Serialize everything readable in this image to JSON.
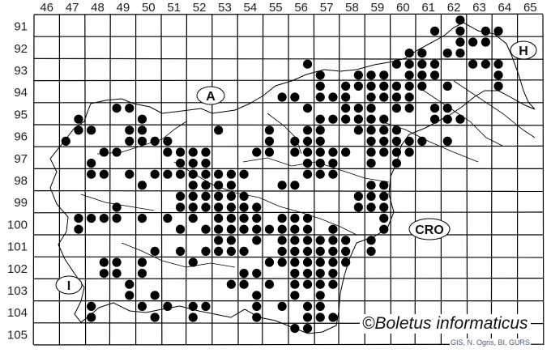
{
  "map": {
    "grid_columns": [
      46,
      47,
      48,
      49,
      50,
      51,
      52,
      53,
      54,
      55,
      56,
      57,
      58,
      59,
      60,
      61,
      62,
      63,
      64,
      65
    ],
    "grid_rows": [
      91,
      92,
      93,
      94,
      95,
      96,
      97,
      98,
      99,
      100,
      101,
      102,
      103,
      104,
      105
    ],
    "country_labels": {
      "austria": "A",
      "hungary": "H",
      "italy": "I",
      "croatia": "CRO"
    },
    "copyright": "©Boletus informaticus",
    "source": "GIS, N. Ogris, BI, GURS",
    "dot_color": "#000000",
    "grid_color": "#000000"
  },
  "occurrences": [
    {
      "y": 91.25,
      "x": [
        62.75
      ]
    },
    {
      "y": 91.75,
      "x": [
        61.75,
        62.75,
        63.75,
        64.25
      ]
    },
    {
      "y": 92.25,
      "x": [
        62.75,
        63.25,
        63.75
      ]
    },
    {
      "y": 92.75,
      "x": [
        60.75,
        61.25,
        62.25,
        62.75
      ]
    },
    {
      "y": 93.25,
      "x": [
        56.75,
        60.25,
        60.75,
        61.25,
        61.75,
        63.25,
        63.75,
        64.25
      ]
    },
    {
      "y": 93.75,
      "x": [
        57.25,
        58.75,
        59.25,
        59.75,
        60.75,
        61.25,
        61.75,
        64.25
      ]
    },
    {
      "y": 94.25,
      "x": [
        57.25,
        58.25,
        58.75,
        59.25,
        59.75,
        60.25,
        60.75,
        61.25,
        62.25,
        64.25
      ]
    },
    {
      "y": 94.75,
      "x": [
        55.75,
        56.25,
        57.25,
        57.75,
        58.25,
        59.25,
        59.75,
        60.25,
        60.75
      ]
    },
    {
      "y": 95.25,
      "x": [
        49.25,
        49.75,
        56.75,
        58.25,
        58.75,
        59.25,
        60.25,
        60.75,
        61.75,
        62.25
      ]
    },
    {
      "y": 95.75,
      "x": [
        47.75,
        50.25,
        57.25,
        57.75,
        58.25,
        58.75,
        59.25,
        59.75,
        61.75,
        62.25,
        62.75
      ]
    },
    {
      "y": 96.25,
      "x": [
        47.75,
        48.25,
        49.75,
        50.25,
        53.25,
        55.25,
        56.75,
        57.25,
        58.75,
        59.25,
        59.75,
        60.25
      ]
    },
    {
      "y": 96.75,
      "x": [
        47.25,
        49.75,
        50.25,
        50.75,
        51.25,
        55.25,
        56.25,
        56.75,
        57.25,
        59.25,
        59.75,
        60.25,
        60.75,
        61.25,
        62.25
      ]
    },
    {
      "y": 97.25,
      "x": [
        48.75,
        49.25,
        51.25,
        51.75,
        52.25,
        52.75,
        54.75,
        55.25,
        56.25,
        56.75,
        57.25,
        57.75,
        58.25,
        59.25,
        59.75,
        60.25,
        60.75
      ]
    },
    {
      "y": 97.75,
      "x": [
        48.25,
        51.75,
        52.25,
        52.75,
        56.75,
        57.25,
        57.75,
        59.25,
        60.25
      ]
    },
    {
      "y": 98.25,
      "x": [
        48.25,
        48.75,
        49.75,
        50.75,
        51.25,
        51.75,
        52.25,
        52.75,
        53.25,
        53.75,
        54.25,
        56.75,
        57.25,
        57.75
      ]
    },
    {
      "y": 98.75,
      "x": [
        50.25,
        52.25,
        52.75,
        53.25,
        53.75,
        55.75,
        56.25,
        59.25,
        59.75
      ]
    },
    {
      "y": 99.25,
      "x": [
        51.75,
        52.25,
        52.75,
        53.25,
        53.75,
        54.25,
        58.75,
        59.25,
        59.75
      ]
    },
    {
      "y": 99.75,
      "x": [
        49.25,
        51.75,
        52.25,
        52.75,
        53.25,
        53.75,
        54.25,
        54.75,
        58.75,
        59.25,
        59.75
      ]
    },
    {
      "y": 100.25,
      "x": [
        47.75,
        48.25,
        48.75,
        49.25,
        50.25,
        51.25,
        52.25,
        53.25,
        53.75,
        54.25,
        54.75,
        55.75,
        56.25,
        56.75,
        59.75
      ]
    },
    {
      "y": 100.75,
      "x": [
        47.75,
        51.75,
        52.75,
        53.25,
        53.75,
        54.25,
        54.75,
        55.25,
        55.75,
        56.25,
        56.75,
        57.75,
        59.75
      ]
    },
    {
      "y": 101.25,
      "x": [
        53.25,
        53.75,
        54.75,
        55.75,
        56.25,
        56.75,
        57.25,
        57.75,
        58.25,
        59.25
      ]
    },
    {
      "y": 101.75,
      "x": [
        50.75,
        51.75,
        52.75,
        53.25,
        53.75,
        54.25,
        55.75,
        56.25,
        56.75,
        57.25,
        57.75,
        58.25,
        59.25
      ]
    },
    {
      "y": 102.25,
      "x": [
        48.75,
        49.25,
        50.25,
        52.25,
        55.25,
        55.75,
        56.25,
        56.75,
        57.25,
        57.75,
        58.25
      ]
    },
    {
      "y": 102.75,
      "x": [
        48.75,
        49.25,
        50.25,
        54.25,
        54.75,
        56.25,
        56.75,
        57.25,
        57.75
      ]
    },
    {
      "y": 103.25,
      "x": [
        49.75,
        53.75,
        54.25,
        55.25,
        56.25,
        56.75,
        57.25,
        57.75
      ]
    },
    {
      "y": 103.75,
      "x": [
        49.75,
        50.75,
        54.75,
        56.25,
        57.25
      ]
    },
    {
      "y": 104.25,
      "x": [
        48.25,
        50.25,
        51.25,
        52.25,
        52.75,
        54.75,
        55.75,
        56.75,
        57.25
      ]
    },
    {
      "y": 104.75,
      "x": [
        48.25,
        50.75,
        52.25,
        54.75,
        56.75,
        57.25,
        57.75
      ]
    },
    {
      "y": 105.25,
      "x": [
        56.25,
        56.75
      ]
    }
  ]
}
